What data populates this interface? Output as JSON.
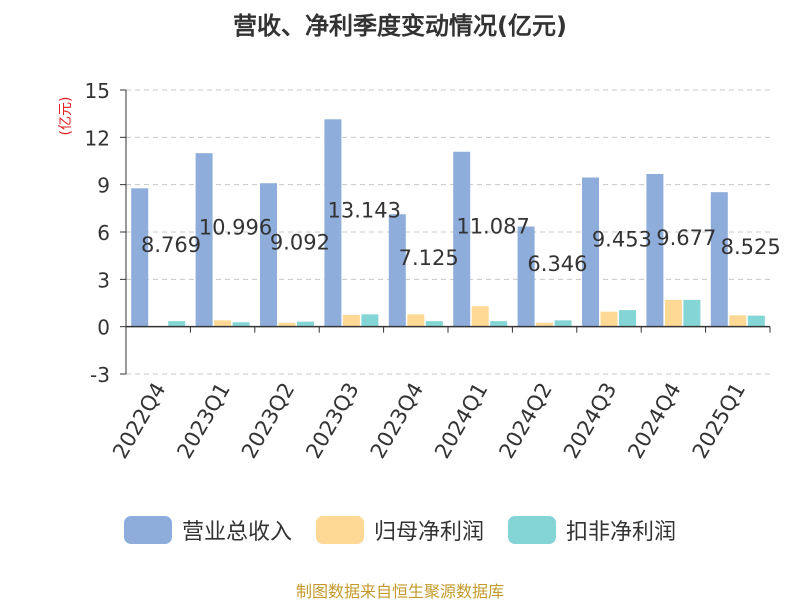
{
  "chart_data": {
    "type": "bar",
    "title": "营收、净利季度变动情况(亿元)",
    "ylabel": "(亿元)",
    "ylim": [
      -3,
      15
    ],
    "yticks": [
      15,
      12,
      9,
      6,
      3,
      0,
      -3
    ],
    "categories": [
      "2022Q4",
      "2023Q1",
      "2023Q2",
      "2023Q3",
      "2023Q4",
      "2024Q1",
      "2024Q2",
      "2024Q3",
      "2024Q4",
      "2025Q1"
    ],
    "series": [
      {
        "name": "营业总收入",
        "color": "#8eaddb",
        "values": [
          8.769,
          10.996,
          9.092,
          13.143,
          7.125,
          11.087,
          6.346,
          9.453,
          9.677,
          8.525
        ],
        "labels": [
          "8.769",
          "10.996",
          "9.092",
          "13.143",
          "7.125",
          "11.087",
          "6.346",
          "9.453",
          "9.677",
          "8.525"
        ]
      },
      {
        "name": "归母净利润",
        "color": "#fed895",
        "values": [
          0.0,
          0.4,
          0.25,
          0.75,
          0.78,
          1.3,
          0.25,
          0.95,
          1.7,
          0.72
        ]
      },
      {
        "name": "扣非净利润",
        "color": "#84d5d6",
        "values": [
          0.35,
          0.28,
          0.32,
          0.78,
          0.35,
          0.35,
          0.4,
          1.05,
          1.7,
          0.7
        ]
      }
    ],
    "grid": true,
    "legend_position": "bottom"
  },
  "source": "制图数据来自恒生聚源数据库"
}
